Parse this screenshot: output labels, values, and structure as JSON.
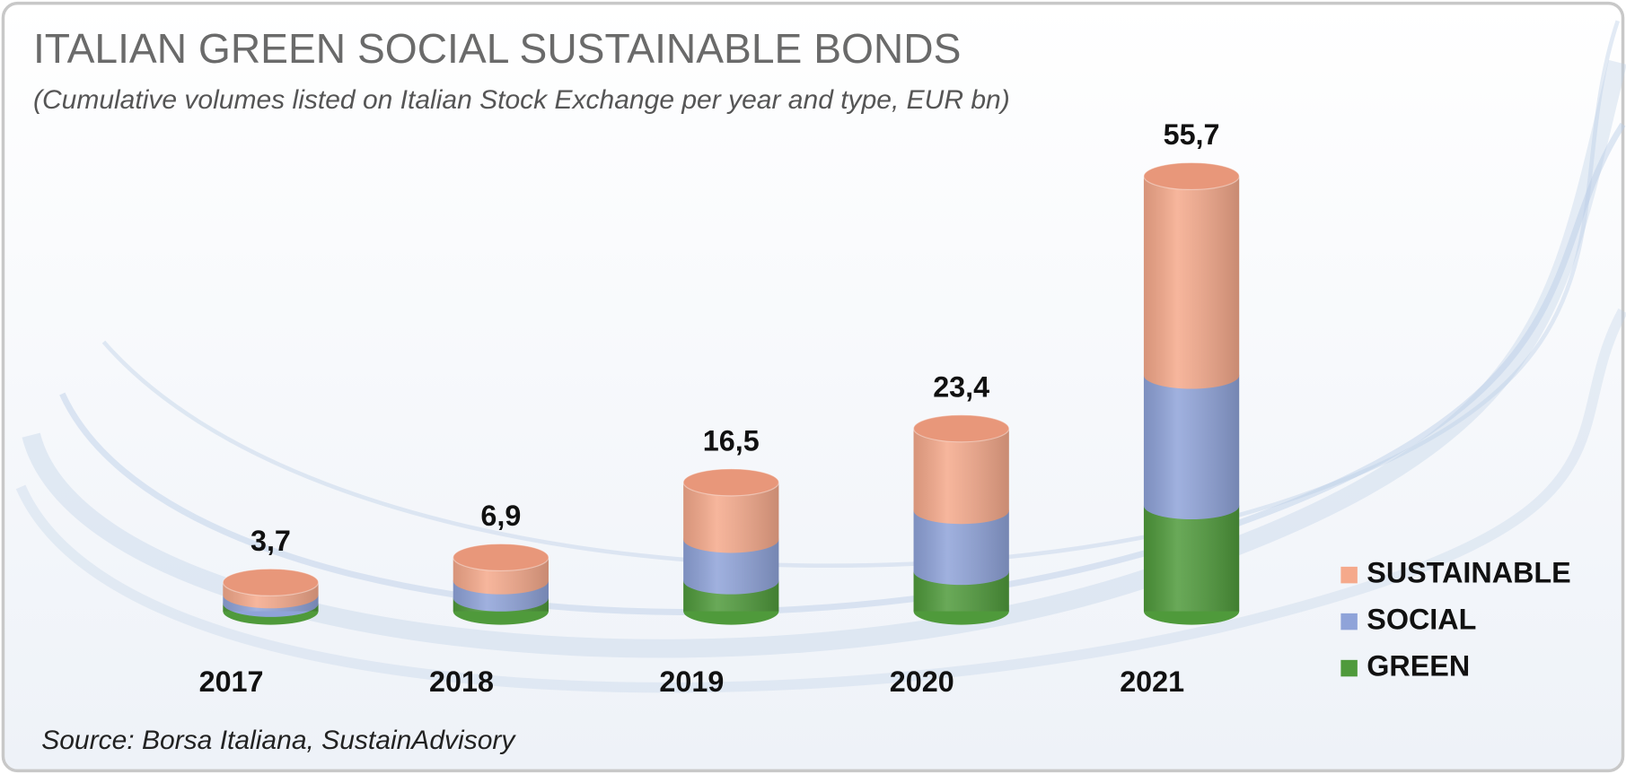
{
  "chart_data": {
    "type": "stacked-cylinder",
    "title": "ITALIAN GREEN SOCIAL SUSTAINABLE BONDS",
    "subtitle": "(Cumulative volumes listed on Italian Stock Exchange  per year and type, EUR bn)",
    "source": "Source: Borsa Italiana, SustainAdvisory",
    "categories": [
      "2017",
      "2018",
      "2019",
      "2020",
      "2021"
    ],
    "series": [
      {
        "name": "GREEN",
        "color": "#4f9a3b",
        "values": [
          1.0,
          1.7,
          3.9,
          5.1,
          13.5
        ]
      },
      {
        "name": "SOCIAL",
        "color": "#8fa3d9",
        "values": [
          1.1,
          2.2,
          5.3,
          7.8,
          16.7
        ]
      },
      {
        "name": "SUSTAINABLE",
        "color": "#f5a98b",
        "values": [
          1.6,
          3.0,
          7.3,
          10.5,
          25.5
        ]
      }
    ],
    "totals": [
      3.7,
      6.9,
      16.5,
      23.4,
      55.7
    ],
    "total_labels": [
      "3,7",
      "6,9",
      "16,5",
      "23,4",
      "55,7"
    ],
    "cap_color": "#e8977a"
  }
}
